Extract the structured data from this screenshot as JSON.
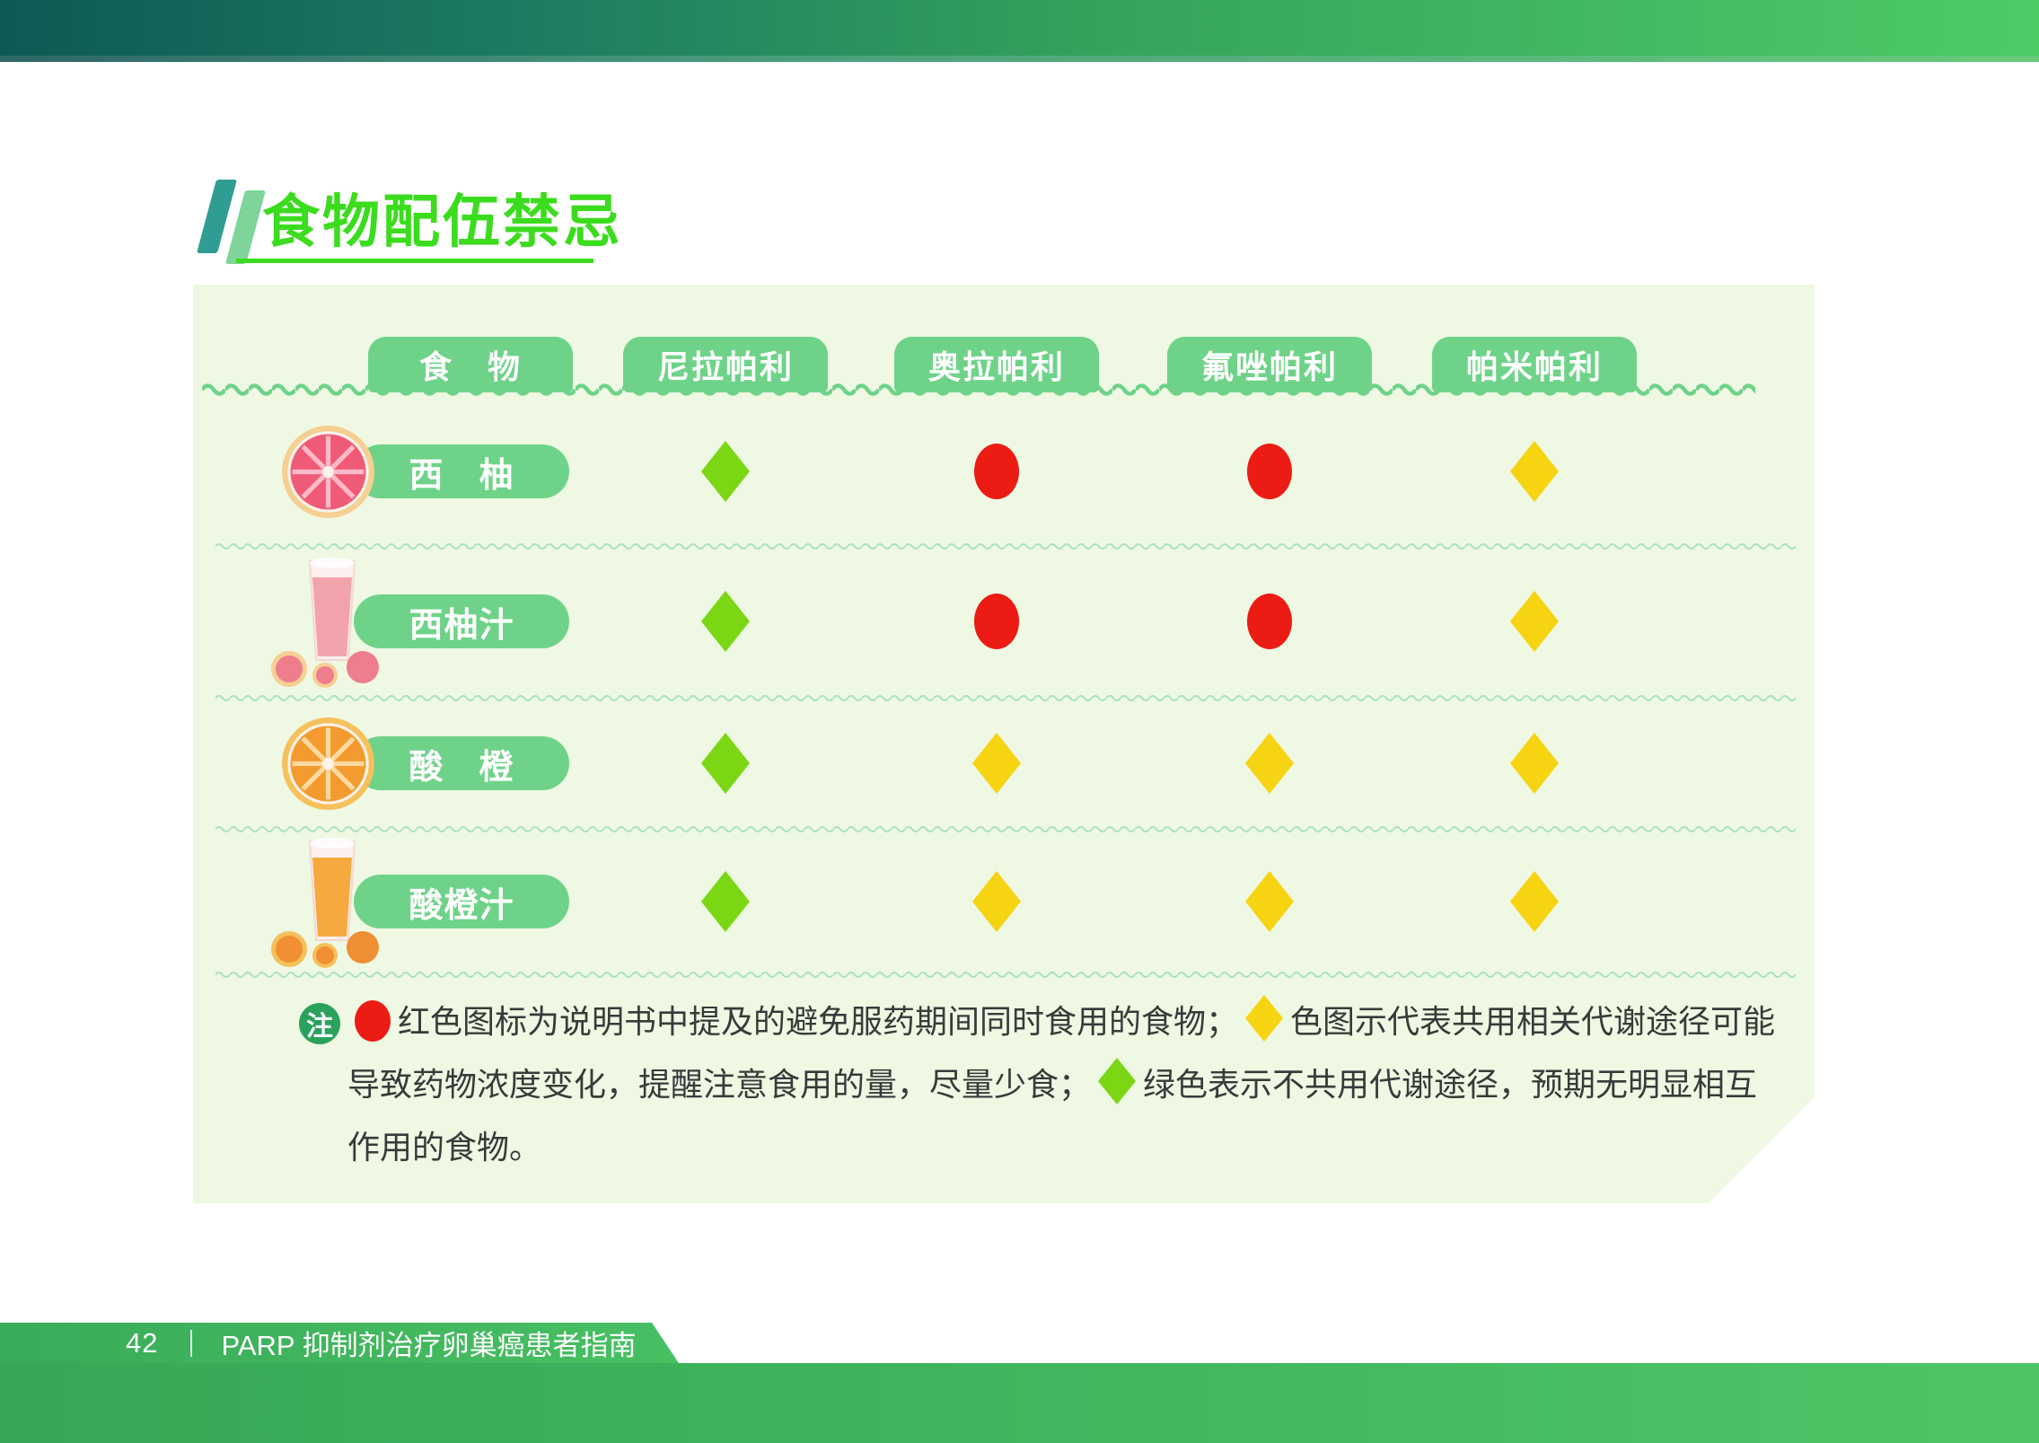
{
  "page": {
    "title": "食物配伍禁忌"
  },
  "table": {
    "columns": [
      {
        "label": "食　物"
      },
      {
        "label": "尼拉帕利"
      },
      {
        "label": "奥拉帕利"
      },
      {
        "label": "氟唑帕利"
      },
      {
        "label": "帕米帕利"
      }
    ],
    "rows": [
      {
        "food": "西　柚",
        "image": "grapefruit",
        "statuses": [
          "green",
          "red",
          "red",
          "yellow"
        ]
      },
      {
        "food": "西柚汁",
        "image": "grapefruit-juice",
        "statuses": [
          "green",
          "red",
          "red",
          "yellow"
        ]
      },
      {
        "food": "酸　橙",
        "image": "sour-orange",
        "statuses": [
          "green",
          "yellow",
          "yellow",
          "yellow"
        ]
      },
      {
        "food": "酸橙汁",
        "image": "sour-orange-juice",
        "statuses": [
          "green",
          "yellow",
          "yellow",
          "yellow"
        ]
      }
    ]
  },
  "note": {
    "badge": "注",
    "segments": [
      {
        "icon": "red-circle"
      },
      {
        "text": "红色图标为说明书中提及的避免服药期间同时食用的食物；"
      },
      {
        "icon": "yellow-diamond"
      },
      {
        "text": "色图示代表共用相关代谢途径可能导致药物浓度变化，提醒注意食用的量，尽量少食；"
      },
      {
        "icon": "green-diamond"
      },
      {
        "text": "绿色表示不共用代谢途径，预期无明显相互作用的食物。"
      }
    ]
  },
  "footer": {
    "page_number": "42",
    "guide_title": "PARP 抑制剂治疗卵巢癌患者指南"
  },
  "colors": {
    "status_green": "#7bd714",
    "status_yellow": "#f6d411",
    "status_red": "#ec1c14",
    "tab_green": "#6ed388",
    "separator_green": "#a9e2c0",
    "title_green": "#3bdc1e",
    "panel_bg": "#eef8e3",
    "badge_green": "#2aa15c"
  }
}
